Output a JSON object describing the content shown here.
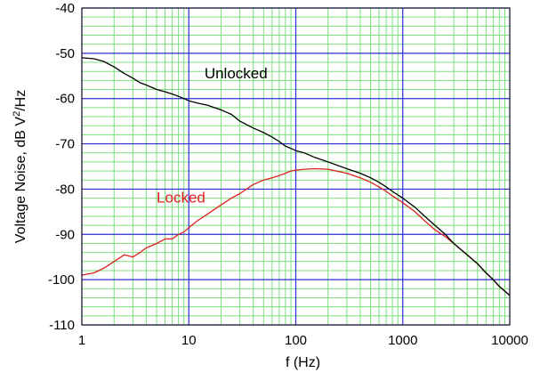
{
  "chart_data": {
    "type": "line",
    "xscale": "log",
    "xlim": [
      1,
      10000
    ],
    "ylim": [
      -110,
      -40
    ],
    "xlabel": "f (Hz)",
    "ylabel_prefix": "Voltage Noise, dB V",
    "ylabel_sup": "2",
    "ylabel_suffix": "/Hz",
    "x_ticks": [
      1,
      10,
      100,
      1000,
      10000
    ],
    "x_tick_labels": [
      "1",
      "10",
      "100",
      "1000",
      "10000"
    ],
    "y_ticks": [
      -40,
      -50,
      -60,
      -70,
      -80,
      -90,
      -100,
      -110
    ],
    "y_tick_labels": [
      "-40",
      "-50",
      "-60",
      "-70",
      "-80",
      "-90",
      "-100",
      "-110"
    ],
    "grid": true,
    "colors": {
      "major_grid": "#2b2bd6",
      "minor_grid": "#7ddf7d",
      "frame": "#000000"
    },
    "series": [
      {
        "name": "Unlocked",
        "color": "#000000",
        "x": [
          1,
          1.3,
          1.6,
          2,
          2.5,
          3,
          3.5,
          4,
          5,
          6,
          7,
          8,
          9,
          10,
          12,
          15,
          20,
          25,
          30,
          40,
          50,
          60,
          70,
          80,
          90,
          100,
          120,
          150,
          200,
          300,
          400,
          500,
          600,
          700,
          800,
          1000,
          1300,
          1600,
          2000,
          2500,
          3000,
          4000,
          5000,
          6000,
          7000,
          8000,
          10000
        ],
        "y": [
          -51,
          -51.2,
          -51.8,
          -53,
          -54.5,
          -55.5,
          -56.5,
          -57,
          -58,
          -58.5,
          -59,
          -59.5,
          -60,
          -60.5,
          -61,
          -61.5,
          -62.5,
          -63.5,
          -65,
          -66.5,
          -67.5,
          -68.5,
          -69.5,
          -70.5,
          -71,
          -71.5,
          -72,
          -73,
          -74,
          -75.5,
          -76.5,
          -77.5,
          -78.5,
          -79.5,
          -80.5,
          -82,
          -84,
          -86,
          -88,
          -90,
          -92,
          -94.5,
          -96.5,
          -98.5,
          -100,
          -101.5,
          -103.5
        ]
      },
      {
        "name": "Locked",
        "color": "#e02020",
        "x": [
          1,
          1.3,
          1.6,
          2,
          2.5,
          3,
          3.5,
          4,
          5,
          6,
          7,
          8,
          9,
          10,
          12,
          15,
          20,
          25,
          30,
          40,
          50,
          60,
          70,
          80,
          90,
          100,
          120,
          150,
          200,
          300,
          400,
          500,
          600,
          700,
          800,
          1000,
          1300,
          1600,
          2000,
          2500,
          3000,
          4000,
          5000,
          6000,
          7000,
          8000,
          10000
        ],
        "y": [
          -99,
          -98.5,
          -97.5,
          -96,
          -94.5,
          -95,
          -94,
          -93,
          -92,
          -91,
          -91,
          -90,
          -89.5,
          -88.5,
          -87,
          -85.5,
          -83.5,
          -82,
          -81,
          -79,
          -78,
          -77.5,
          -77,
          -76.5,
          -76,
          -75.8,
          -75.6,
          -75.5,
          -75.6,
          -76.5,
          -77.5,
          -78.5,
          -79.5,
          -80.5,
          -81.5,
          -83,
          -85,
          -87,
          -89,
          -90.5,
          -92,
          -94.5,
          -96.5,
          -98.5,
          -100,
          -101.5,
          -103.5
        ]
      }
    ],
    "annotations": [
      {
        "text": "Unlocked",
        "color": "#000000",
        "x": 14,
        "y": -55.5
      },
      {
        "text": "Locked",
        "color": "#e02020",
        "x": 5,
        "y": -83
      }
    ]
  }
}
